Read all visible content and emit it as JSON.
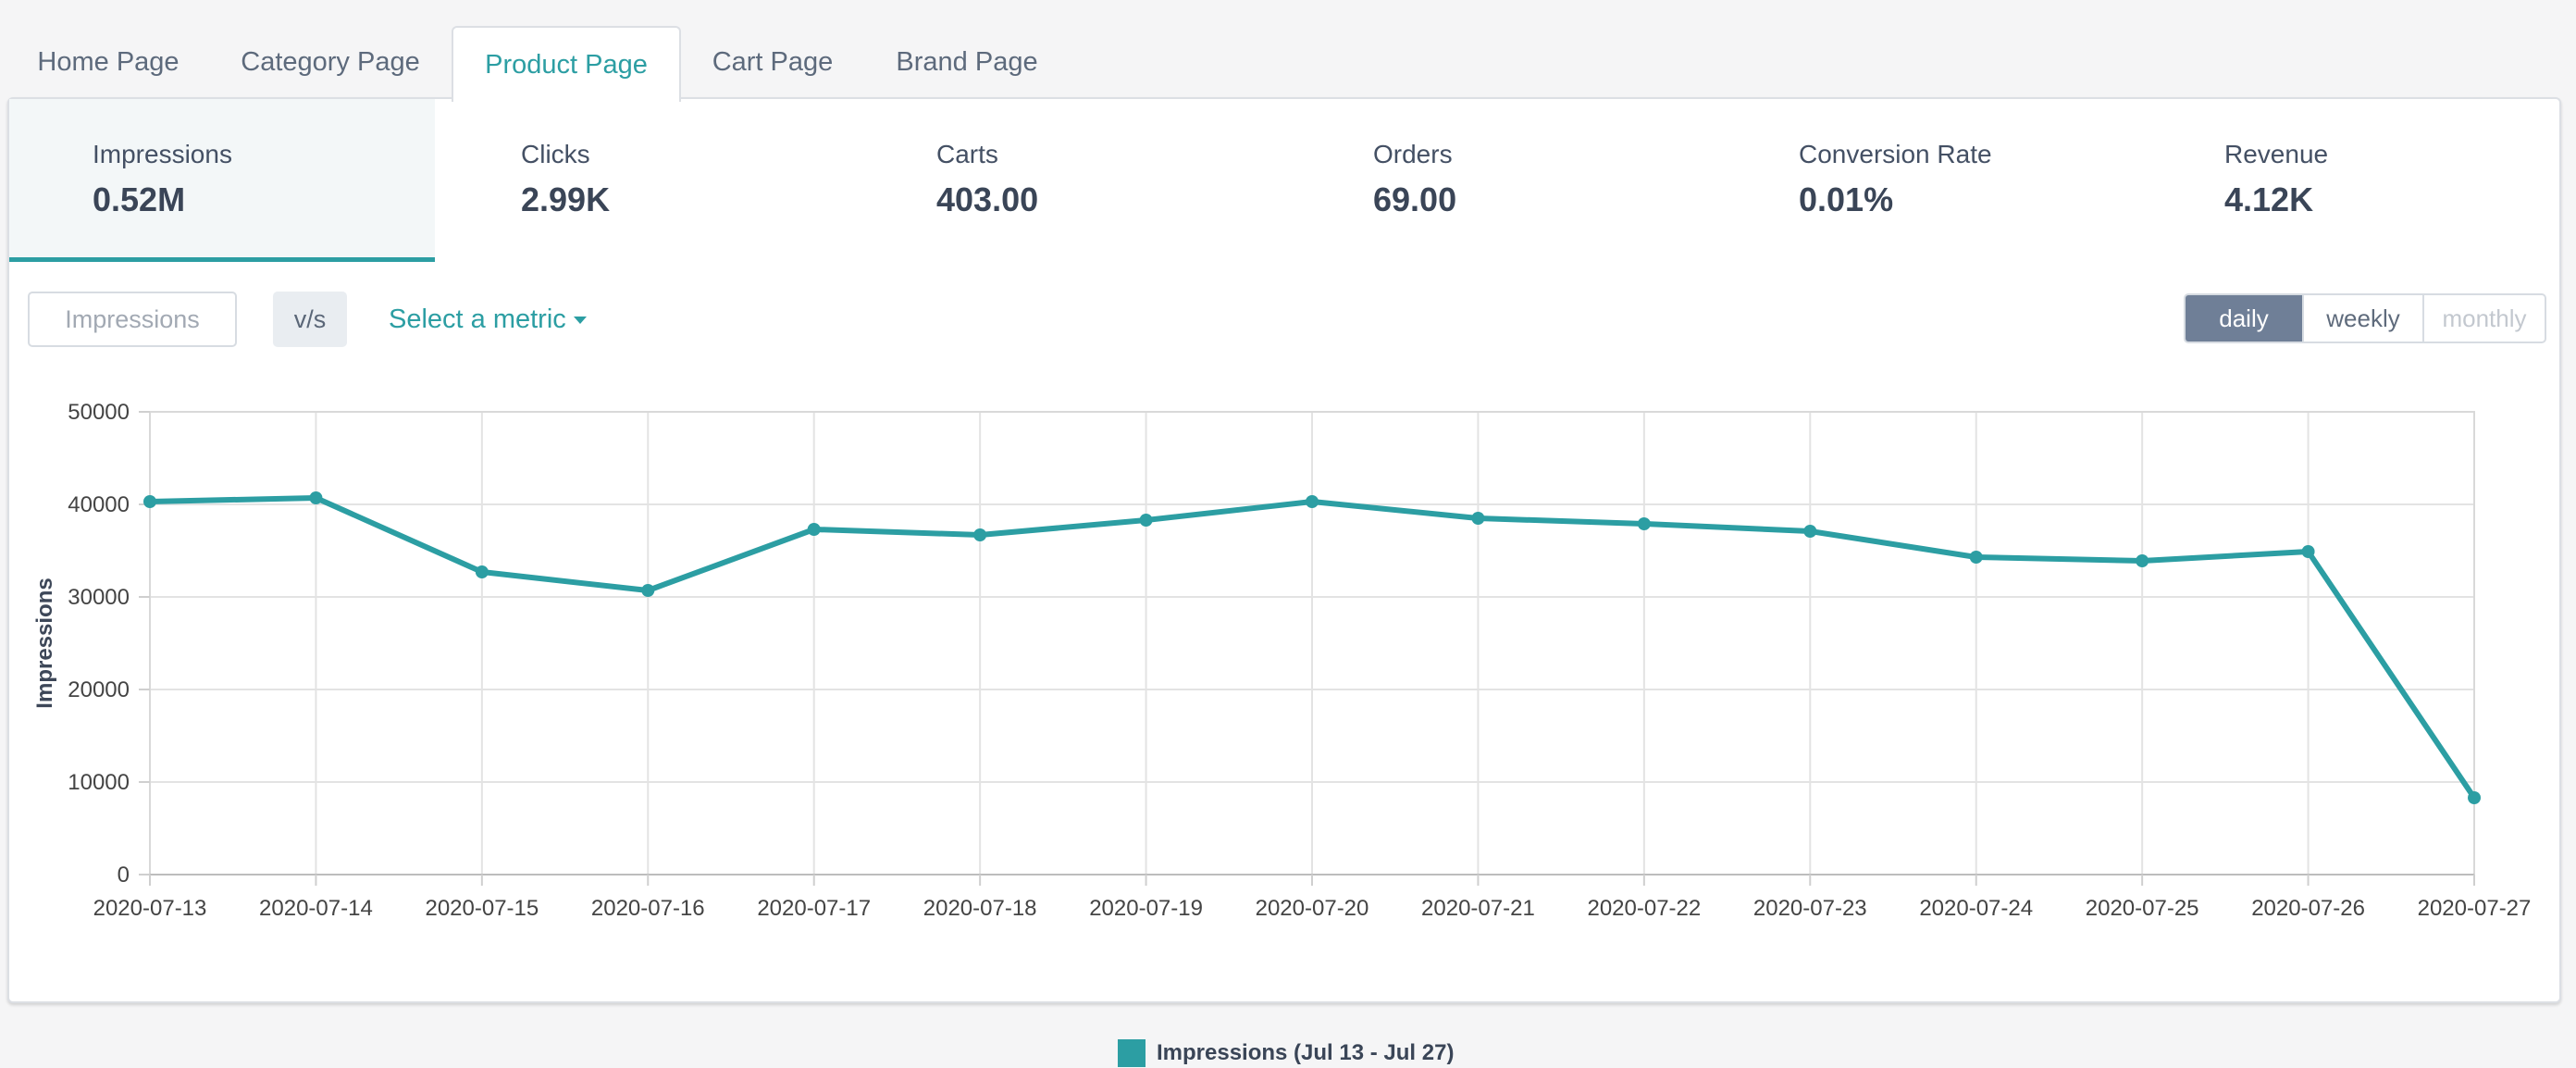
{
  "tabs": [
    {
      "label": "Home Page",
      "active": false
    },
    {
      "label": "Category Page",
      "active": false
    },
    {
      "label": "Product Page",
      "active": true
    },
    {
      "label": "Cart Page",
      "active": false
    },
    {
      "label": "Brand Page",
      "active": false
    }
  ],
  "metrics": [
    {
      "label": "Impressions",
      "value": "0.52M",
      "active": true
    },
    {
      "label": "Clicks",
      "value": "2.99K",
      "active": false
    },
    {
      "label": "Carts",
      "value": "403.00",
      "active": false
    },
    {
      "label": "Orders",
      "value": "69.00",
      "active": false
    },
    {
      "label": "Conversion Rate",
      "value": "0.01%",
      "active": false
    },
    {
      "label": "Revenue",
      "value": "4.12K",
      "active": false
    }
  ],
  "controls": {
    "primary_metric": "Impressions",
    "vs_label": "v/s",
    "select_metric_label": "Select a metric",
    "periods": [
      {
        "label": "daily",
        "selected": true
      },
      {
        "label": "weekly",
        "selected": false
      },
      {
        "label": "monthly",
        "selected": false,
        "disabled": true
      }
    ]
  },
  "colors": {
    "accent": "#2c9ea3",
    "active_period_bg": "#6f7f97"
  },
  "chart_data": {
    "type": "line",
    "ylabel": "Impressions",
    "xlabel": "",
    "ylim": [
      0,
      50000
    ],
    "yticks": [
      0,
      10000,
      20000,
      30000,
      40000,
      50000
    ],
    "grid": true,
    "legend_position": "bottom-center",
    "x": [
      "2020-07-13",
      "2020-07-14",
      "2020-07-15",
      "2020-07-16",
      "2020-07-17",
      "2020-07-18",
      "2020-07-19",
      "2020-07-20",
      "2020-07-21",
      "2020-07-22",
      "2020-07-23",
      "2020-07-24",
      "2020-07-25",
      "2020-07-26",
      "2020-07-27"
    ],
    "series": [
      {
        "name": "Impressions (Jul 13 - Jul 27)",
        "color": "#2c9ea3",
        "values": [
          40300,
          40700,
          32700,
          30700,
          37300,
          36700,
          38300,
          40300,
          38500,
          37900,
          37100,
          34300,
          33900,
          34900,
          8300
        ]
      }
    ]
  }
}
